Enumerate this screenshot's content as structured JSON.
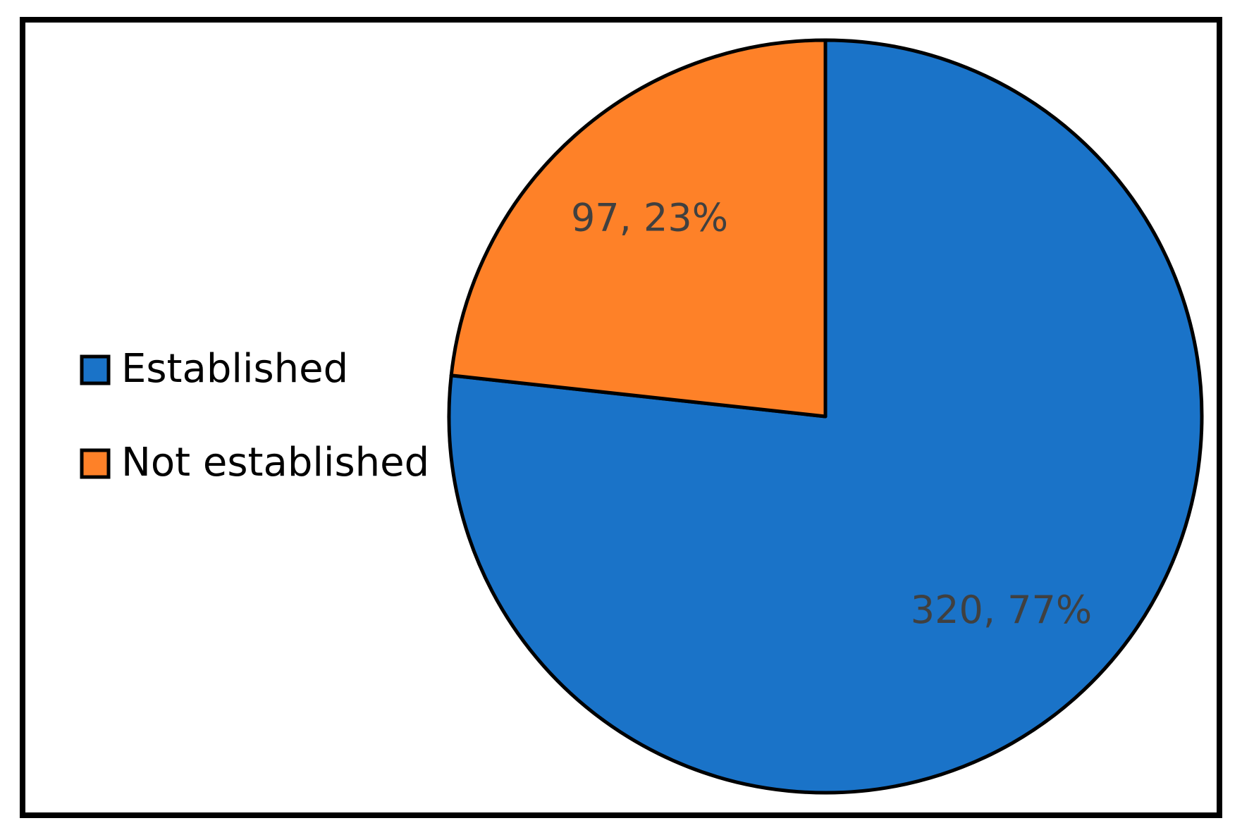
{
  "chart_data": {
    "type": "pie",
    "categories": [
      "Established",
      "Not established"
    ],
    "values": [
      320,
      97
    ],
    "value_labels": [
      "320, 77%",
      "97, 23%"
    ],
    "colors": [
      "#1a73c8",
      "#fe8128"
    ],
    "legend": "left"
  }
}
